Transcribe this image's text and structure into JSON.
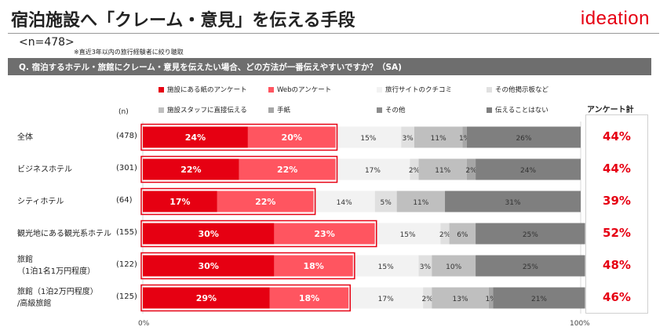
{
  "header": {
    "title": "宿泊施設へ「クレーム・意見」を伝える手段",
    "logo": "ideation",
    "sample_size": "<n=478>",
    "sample_note": "※直近3年以内の旅行経験者に絞り聴取",
    "question": "Q. 宿泊するホテル・旅館にクレーム・意見を伝えたい場合、どの方法が一番伝えやすいですか？（SA)"
  },
  "colors": {
    "brand": "#e60012",
    "highlight_border": "#e60012",
    "question_bar": "#6e6e6e"
  },
  "legend": [
    {
      "label": "施設にある紙のアンケート",
      "color": "#e60012"
    },
    {
      "label": "Webのアンケート",
      "color": "#ff5560"
    },
    {
      "label": "旅行サイトのクチコミ",
      "color": "#f2f2f2"
    },
    {
      "label": "その他掲示板など",
      "color": "#e0e0e0"
    },
    {
      "label": "施設スタッフに直接伝える",
      "color": "#bfbfbf"
    },
    {
      "label": "手紙",
      "color": "#a6a6a6"
    },
    {
      "label": "その他",
      "color": "#8c8c8c"
    },
    {
      "label": "伝えることはない",
      "color": "#7f7f7f"
    }
  ],
  "n_header": "(n)",
  "total_header": "アンケート計",
  "chart_data": {
    "type": "bar",
    "orientation": "horizontal",
    "stacked": true,
    "normalized": true,
    "xlim": [
      0,
      100
    ],
    "x_tick_labels": [
      "0%",
      "100%"
    ],
    "categories": [
      {
        "label": "全体",
        "n": "(478)"
      },
      {
        "label": "ビジネスホテル",
        "n": "(301)"
      },
      {
        "label": "シティホテル",
        "n": "(64)"
      },
      {
        "label": "観光地にある観光系ホテル",
        "n": "(155)"
      },
      {
        "label": "旅館\n（1泊1名1万円程度）",
        "n": "(122)"
      },
      {
        "label": "旅館（1泊2万円程度）\n/高級旅館",
        "n": "(125)"
      }
    ],
    "series": [
      {
        "name": "施設にある紙のアンケート",
        "values": [
          24,
          22,
          17,
          30,
          30,
          29
        ],
        "labels": [
          "24%",
          "22%",
          "17%",
          "30%",
          "30%",
          "29%"
        ]
      },
      {
        "name": "Webのアンケート",
        "values": [
          20,
          22,
          22,
          23,
          18,
          18
        ],
        "labels": [
          "20%",
          "22%",
          "22%",
          "23%",
          "18%",
          "18%"
        ]
      },
      {
        "name": "旅行サイトのクチコミ",
        "values": [
          15,
          17,
          14,
          15,
          15,
          17
        ],
        "labels": [
          "15%",
          "17%",
          "14%",
          "15%",
          "15%",
          "17%"
        ]
      },
      {
        "name": "その他掲示板など",
        "values": [
          3,
          2,
          5,
          2,
          3,
          2
        ],
        "labels": [
          "3%",
          "2%",
          "5%",
          "2%",
          "3%",
          "2%"
        ]
      },
      {
        "name": "施設スタッフに直接伝える",
        "values": [
          11,
          11,
          11,
          6,
          10,
          13
        ],
        "labels": [
          "11%",
          "11%",
          "11%",
          "6%",
          "10%",
          "13%"
        ]
      },
      {
        "name": "手紙",
        "values": [
          1,
          2,
          0,
          0,
          0,
          1
        ],
        "labels": [
          "1%",
          "2%",
          "",
          "",
          "",
          "1%"
        ]
      },
      {
        "name": "その他",
        "values": [
          0,
          0,
          0,
          0,
          0,
          0
        ],
        "labels": [
          "",
          "",
          "",
          "",
          "",
          ""
        ]
      },
      {
        "name": "伝えることはない",
        "values": [
          26,
          24,
          31,
          25,
          25,
          21
        ],
        "labels": [
          "26%",
          "24%",
          "31%",
          "25%",
          "25%",
          "21%"
        ]
      }
    ],
    "totals": [
      "44%",
      "44%",
      "39%",
      "52%",
      "48%",
      "46%"
    ]
  }
}
